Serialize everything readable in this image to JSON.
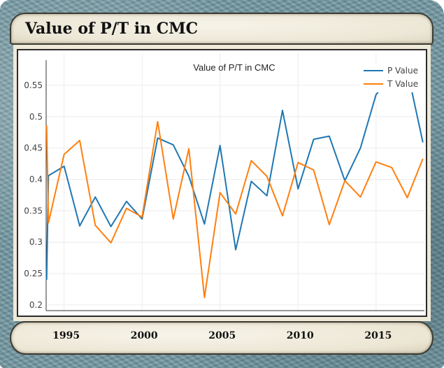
{
  "card": {
    "title": "Value of P/T in CMC",
    "bottom_year_labels": [
      "1995",
      "2000",
      "2005",
      "2010",
      "2015"
    ]
  },
  "colors": {
    "p_series": "#1f77b4",
    "t_series": "#ff7f0e",
    "frame": "#6f949e",
    "banner": "#ece7d6"
  },
  "chart_data": {
    "type": "line",
    "title": "Value of P/T in CMC",
    "xlabel": "",
    "ylabel": "",
    "x": [
      1993.88,
      1994,
      1995,
      1996,
      1997,
      1998,
      1999,
      2000,
      2001,
      2002,
      2003,
      2004,
      2005,
      2006,
      2007,
      2008,
      2009,
      2010,
      2011,
      2012,
      2013,
      2014,
      2015,
      2016,
      2017,
      2018
    ],
    "series": [
      {
        "name": "P Value",
        "color": "#1f77b4",
        "values": [
          0.24,
          0.406,
          0.421,
          0.326,
          0.372,
          0.325,
          0.365,
          0.337,
          0.466,
          0.455,
          0.405,
          0.329,
          0.454,
          0.288,
          0.397,
          0.374,
          0.51,
          0.385,
          0.464,
          0.469,
          0.398,
          0.45,
          0.535,
          0.565,
          0.574,
          0.459
        ]
      },
      {
        "name": "T Value",
        "color": "#ff7f0e",
        "values": [
          0.486,
          0.331,
          0.44,
          0.462,
          0.327,
          0.299,
          0.354,
          0.34,
          0.492,
          0.337,
          0.449,
          0.212,
          0.379,
          0.345,
          0.43,
          0.405,
          0.342,
          0.427,
          0.415,
          0.328,
          0.398,
          0.372,
          0.428,
          0.419,
          0.371,
          0.433
        ]
      }
    ],
    "xlim": [
      1993.85,
      2018.1
    ],
    "ylim": [
      0.191,
      0.59
    ],
    "x_ticks": [
      1995,
      2000,
      2005,
      2010,
      2015
    ],
    "y_ticks": [
      0.2,
      0.25,
      0.3,
      0.35,
      0.4,
      0.45,
      0.5,
      0.55
    ],
    "y_tick_labels": [
      "0.2",
      "0.25",
      "0.3",
      "0.35",
      "0.4",
      "0.45",
      "0.5",
      "0.55"
    ],
    "grid": true,
    "legend": [
      "P Value",
      "T Value"
    ],
    "legend_position": "top-right"
  }
}
